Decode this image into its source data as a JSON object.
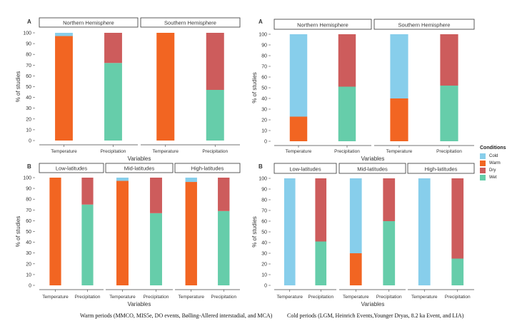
{
  "colors": {
    "Cold": "#87CEEB",
    "Warm": "#F26522",
    "Dry": "#CD5C5C",
    "Wet": "#66CDAA"
  },
  "legend": {
    "title": "Conditions",
    "items": [
      "Cold",
      "Warm",
      "Dry",
      "Wet"
    ]
  },
  "captions": {
    "warm": "Warm periods (MMCO, MIS5e, DO events, Bølling-Allered interstadial, and MCA)",
    "cold": "Cold periods (LGM, Heinrich Events,Younger Dryas, 8.2 ka Event, and LIA)"
  },
  "chart_data": [
    {
      "type": "bar",
      "stacked": true,
      "panel_label": "A",
      "period": "Warm",
      "ylabel": "% of studies",
      "xlabel": "Variables",
      "ylim": [
        0,
        100
      ],
      "yticks": [
        0,
        10,
        20,
        30,
        40,
        50,
        60,
        70,
        80,
        90,
        100
      ],
      "facets": [
        {
          "title": "Northern Hemisphere",
          "bars": [
            {
              "category": "Temperature",
              "stack": [
                {
                  "condition": "Warm",
                  "value": 97
                },
                {
                  "condition": "Cold",
                  "value": 3
                }
              ]
            },
            {
              "category": "Precipitation",
              "stack": [
                {
                  "condition": "Wet",
                  "value": 72
                },
                {
                  "condition": "Dry",
                  "value": 28
                }
              ]
            }
          ]
        },
        {
          "title": "Southern Hemisphere",
          "bars": [
            {
              "category": "Temperature",
              "stack": [
                {
                  "condition": "Warm",
                  "value": 100
                }
              ]
            },
            {
              "category": "Precipitation",
              "stack": [
                {
                  "condition": "Wet",
                  "value": 47
                },
                {
                  "condition": "Dry",
                  "value": 53
                }
              ]
            }
          ]
        }
      ]
    },
    {
      "type": "bar",
      "stacked": true,
      "panel_label": "B",
      "period": "Warm",
      "ylabel": "% of studies",
      "xlabel": "Variables",
      "ylim": [
        0,
        100
      ],
      "yticks": [
        0,
        10,
        20,
        30,
        40,
        50,
        60,
        70,
        80,
        90,
        100
      ],
      "facets": [
        {
          "title": "Low-latitudes",
          "bars": [
            {
              "category": "Temperature",
              "stack": [
                {
                  "condition": "Warm",
                  "value": 100
                }
              ]
            },
            {
              "category": "Precipitation",
              "stack": [
                {
                  "condition": "Wet",
                  "value": 75
                },
                {
                  "condition": "Dry",
                  "value": 25
                }
              ]
            }
          ]
        },
        {
          "title": "Mid-latitudes",
          "bars": [
            {
              "category": "Temperature",
              "stack": [
                {
                  "condition": "Warm",
                  "value": 97
                },
                {
                  "condition": "Cold",
                  "value": 3
                }
              ]
            },
            {
              "category": "Precipitation",
              "stack": [
                {
                  "condition": "Wet",
                  "value": 67
                },
                {
                  "condition": "Dry",
                  "value": 33
                }
              ]
            }
          ]
        },
        {
          "title": "High-latitudes",
          "bars": [
            {
              "category": "Temperature",
              "stack": [
                {
                  "condition": "Warm",
                  "value": 96
                },
                {
                  "condition": "Cold",
                  "value": 4
                }
              ]
            },
            {
              "category": "Precipitation",
              "stack": [
                {
                  "condition": "Wet",
                  "value": 69
                },
                {
                  "condition": "Dry",
                  "value": 31
                }
              ]
            }
          ]
        }
      ]
    },
    {
      "type": "bar",
      "stacked": true,
      "panel_label": "A",
      "period": "Cold",
      "ylabel": "% of studies",
      "xlabel": "Variables",
      "ylim": [
        0,
        100
      ],
      "yticks": [
        0,
        10,
        20,
        30,
        40,
        50,
        60,
        70,
        80,
        90,
        100
      ],
      "facets": [
        {
          "title": "Northern Hemisphere",
          "bars": [
            {
              "category": "Temperature",
              "stack": [
                {
                  "condition": "Warm",
                  "value": 23
                },
                {
                  "condition": "Cold",
                  "value": 77
                }
              ]
            },
            {
              "category": "Precipitation",
              "stack": [
                {
                  "condition": "Wet",
                  "value": 51
                },
                {
                  "condition": "Dry",
                  "value": 49
                }
              ]
            }
          ]
        },
        {
          "title": "Southern Hemisphere",
          "bars": [
            {
              "category": "Temperature",
              "stack": [
                {
                  "condition": "Warm",
                  "value": 40
                },
                {
                  "condition": "Cold",
                  "value": 60
                }
              ]
            },
            {
              "category": "Precipitation",
              "stack": [
                {
                  "condition": "Wet",
                  "value": 52
                },
                {
                  "condition": "Dry",
                  "value": 48
                }
              ]
            }
          ]
        }
      ]
    },
    {
      "type": "bar",
      "stacked": true,
      "panel_label": "B",
      "period": "Cold",
      "ylabel": "% of studies",
      "xlabel": "Variables",
      "ylim": [
        0,
        100
      ],
      "yticks": [
        0,
        10,
        20,
        30,
        40,
        50,
        60,
        70,
        80,
        90,
        100
      ],
      "facets": [
        {
          "title": "Low-latitudes",
          "bars": [
            {
              "category": "Temperature",
              "stack": [
                {
                  "condition": "Cold",
                  "value": 100
                }
              ]
            },
            {
              "category": "Precipitation",
              "stack": [
                {
                  "condition": "Wet",
                  "value": 41
                },
                {
                  "condition": "Dry",
                  "value": 59
                }
              ]
            }
          ]
        },
        {
          "title": "Mid-latitudes",
          "bars": [
            {
              "category": "Temperature",
              "stack": [
                {
                  "condition": "Warm",
                  "value": 30
                },
                {
                  "condition": "Cold",
                  "value": 70
                }
              ]
            },
            {
              "category": "Precipitation",
              "stack": [
                {
                  "condition": "Wet",
                  "value": 60
                },
                {
                  "condition": "Dry",
                  "value": 40
                }
              ]
            }
          ]
        },
        {
          "title": "High-latitudes",
          "bars": [
            {
              "category": "Temperature",
              "stack": [
                {
                  "condition": "Cold",
                  "value": 100
                }
              ]
            },
            {
              "category": "Precipitation",
              "stack": [
                {
                  "condition": "Wet",
                  "value": 25
                },
                {
                  "condition": "Dry",
                  "value": 75
                }
              ]
            }
          ]
        }
      ]
    }
  ]
}
